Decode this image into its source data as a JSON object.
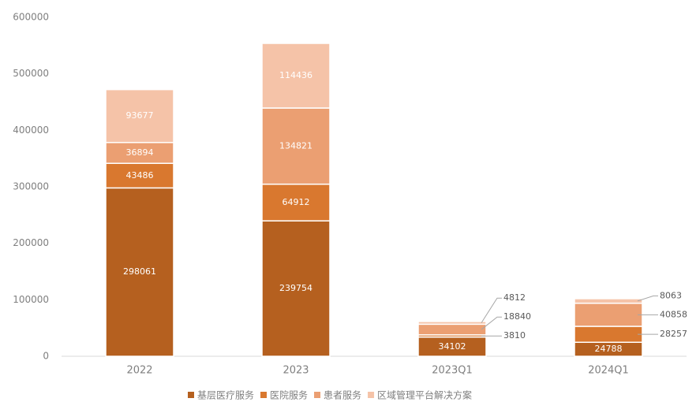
{
  "chart_data": {
    "type": "stacked_bar",
    "categories": [
      "2022",
      "2023",
      "2023Q1",
      "2024Q1"
    ],
    "series": [
      {
        "name": "基层医疗服务",
        "color": "#b5601f",
        "values": [
          298061,
          239754,
          34102,
          24788
        ]
      },
      {
        "name": "医院服务",
        "color": "#d9782f",
        "values": [
          43486,
          64912,
          3810,
          28257
        ]
      },
      {
        "name": "患者服务",
        "color": "#eb9f72",
        "values": [
          36894,
          134821,
          18840,
          40858
        ]
      },
      {
        "name": "区域管理平台解决方案",
        "color": "#f5c3a8",
        "values": [
          93677,
          114436,
          4812,
          8063
        ]
      }
    ],
    "ylim": [
      0,
      600000
    ],
    "yticks": [
      0,
      100000,
      200000,
      300000,
      400000,
      500000,
      600000
    ],
    "legend": "bottom"
  }
}
